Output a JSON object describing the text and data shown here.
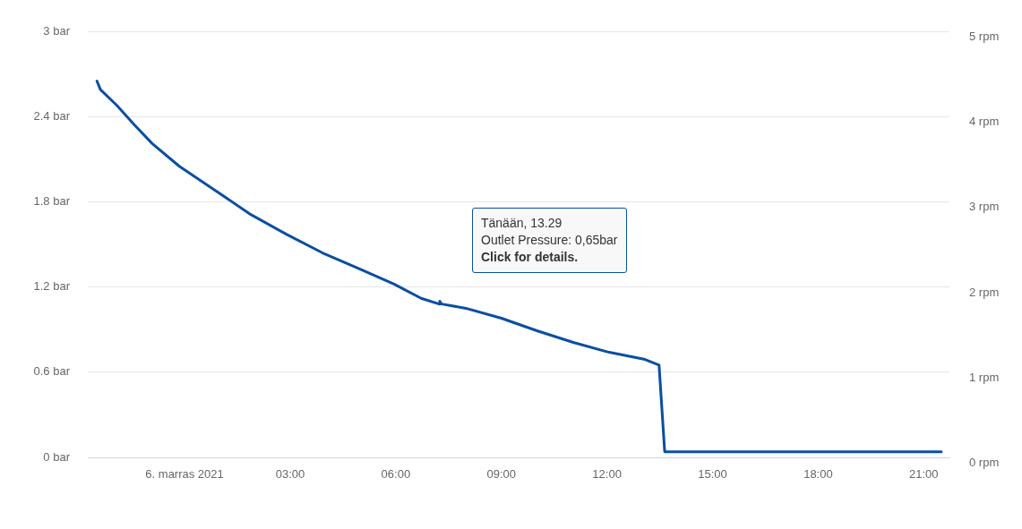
{
  "chart_data": {
    "type": "line",
    "x": [
      -2.49,
      -2.39,
      -1.93,
      -1.42,
      -0.92,
      -0.15,
      0.87,
      1.88,
      2.9,
      3.92,
      4.94,
      5.95,
      6.72,
      7.23,
      7.25,
      7.3,
      7.99,
      9.0,
      10.03,
      11.04,
      12.06,
      13.08,
      13.48,
      13.64,
      21.5
    ],
    "series": [
      {
        "color": "#0b4ea2",
        "values": [
          2.65,
          2.59,
          2.48,
          2.34,
          2.21,
          2.05,
          1.88,
          1.71,
          1.57,
          1.44,
          1.33,
          1.22,
          1.12,
          1.08,
          1.1,
          1.08,
          1.05,
          0.98,
          0.89,
          0.81,
          0.74,
          0.69,
          0.65,
          0.04,
          0.04
        ]
      }
    ],
    "xlim": [
      -2.75,
      21.73
    ],
    "xticks": [
      {
        "value": 0,
        "label": "6. marras 2021"
      },
      {
        "value": 3,
        "label": "03:00"
      },
      {
        "value": 6,
        "label": "06:00"
      },
      {
        "value": 9,
        "label": "09:00"
      },
      {
        "value": 12,
        "label": "12:00"
      },
      {
        "value": 15,
        "label": "15:00"
      },
      {
        "value": 18,
        "label": "18:00"
      },
      {
        "value": 21,
        "label": "21:00"
      }
    ],
    "ylim": [
      0,
      3
    ],
    "yticks": [
      {
        "value": 0,
        "label": "0 bar"
      },
      {
        "value": 0.6,
        "label": "0.6 bar"
      },
      {
        "value": 1.2,
        "label": "1.2 bar"
      },
      {
        "value": 1.8,
        "label": "1.8 bar"
      },
      {
        "value": 2.4,
        "label": "2.4 bar"
      },
      {
        "value": 3,
        "label": "3 bar"
      }
    ],
    "y2lim": [
      0,
      5
    ],
    "y2ticks": [
      {
        "value": 0,
        "label": "0 rpm"
      },
      {
        "value": 1,
        "label": "1 rpm"
      },
      {
        "value": 2,
        "label": "2 rpm"
      },
      {
        "value": 3,
        "label": "3 rpm"
      },
      {
        "value": 4,
        "label": "4 rpm"
      },
      {
        "value": 5,
        "label": "5 rpm"
      }
    ],
    "grid": "y",
    "legend": false,
    "marker": "none",
    "line_style": "solid",
    "annotations": [
      "Tänään, 13.29\nOutlet Pressure: 0,65bar\nClick for details."
    ]
  }
}
